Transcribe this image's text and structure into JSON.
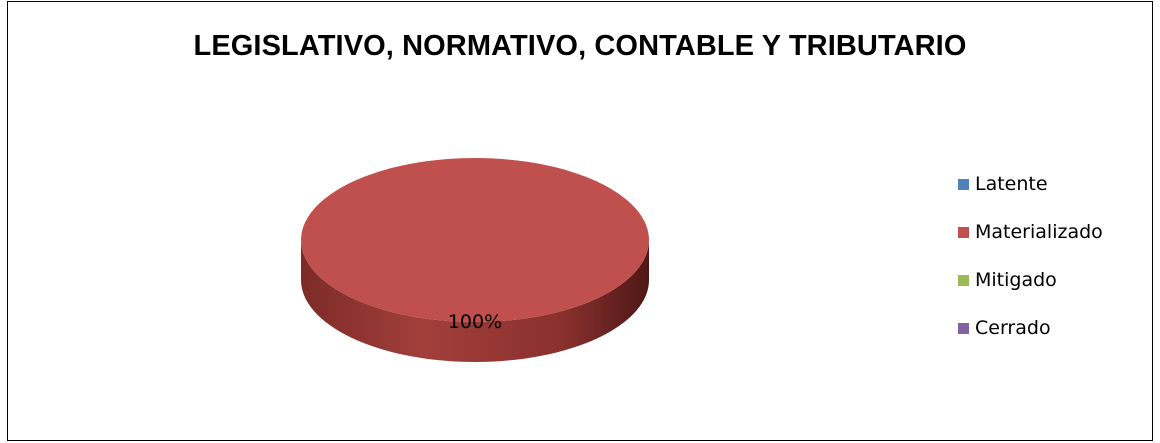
{
  "chart_data": {
    "type": "pie",
    "title": "LEGISLATIVO, NORMATIVO, CONTABLE Y TRIBUTARIO",
    "categories": [
      "Latente",
      "Materializado",
      "Mitigado",
      "Cerrado"
    ],
    "values": [
      0,
      100,
      0,
      0
    ],
    "data_labels": [
      "",
      "100%",
      "",
      ""
    ],
    "colors": [
      "#4F81BD",
      "#C0504D",
      "#9BBB59",
      "#8064A2"
    ],
    "style": "3d",
    "legend_position": "right"
  }
}
